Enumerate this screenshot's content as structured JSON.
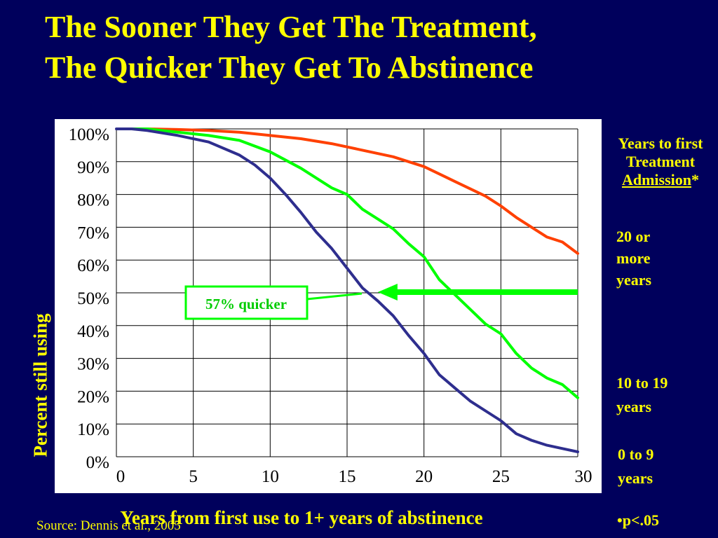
{
  "title": {
    "line1": "The Sooner They Get The Treatment,",
    "line2": "The Quicker They Get To Abstinence"
  },
  "source": "Source: Dennis et al., 2005",
  "legend": {
    "title_line1": "Years to first",
    "title_line2": "Treatment",
    "title_line3": "Admission",
    "title_star": "*",
    "items": [
      {
        "line1": "20 or",
        "line2": "more",
        "line3": "years"
      },
      {
        "line1": "10 to 19",
        "line2": "years"
      },
      {
        "line1": "0 to 9",
        "line2": "years"
      }
    ]
  },
  "footnote": "•p<.05",
  "colors": {
    "background": "#00005c",
    "text": "#ffff00",
    "plot_bg": "#ffffff",
    "series_20_plus": "#ff4000",
    "series_10_19": "#00ff00",
    "series_0_9": "#2e2e8e",
    "annotation": "#00cc00"
  },
  "chart_data": {
    "type": "line",
    "xlabel": "Years from first use to 1+ years of abstinence",
    "ylabel": "Percent still using",
    "xlim": [
      0,
      30
    ],
    "ylim": [
      0,
      100
    ],
    "xticks": [
      "0",
      "5",
      "10",
      "15",
      "20",
      "25",
      "30"
    ],
    "yticks": [
      "0%",
      "10%",
      "20%",
      "30%",
      "40%",
      "50%",
      "60%",
      "70%",
      "80%",
      "90%",
      "100%"
    ],
    "grid": true,
    "legend_position": "right, outside",
    "annotation": {
      "text": "57% quicker",
      "arrow_y": 50,
      "arrow_from_x": 30,
      "arrow_to_x": 17
    },
    "series": [
      {
        "name": "20 or more years",
        "x": [
          1,
          2,
          4,
          6,
          8,
          10,
          12,
          14,
          16,
          18,
          20,
          22,
          24,
          25,
          26,
          27,
          28,
          29,
          30
        ],
        "values": [
          100,
          100,
          99.8,
          99.5,
          99,
          98,
          97,
          95.5,
          93.5,
          91.5,
          88.5,
          84,
          79.5,
          76.5,
          73,
          70,
          67,
          65.5,
          62
        ]
      },
      {
        "name": "10 to 19 years",
        "x": [
          1,
          2,
          4,
          6,
          8,
          10,
          12,
          14,
          15,
          16,
          17,
          18,
          19,
          20,
          21,
          22,
          23,
          24,
          25,
          26,
          27,
          28,
          29,
          30
        ],
        "values": [
          100,
          100,
          99,
          98,
          96.5,
          93,
          88,
          82,
          80,
          75.5,
          72.5,
          69.5,
          65,
          61,
          54,
          49.5,
          45,
          40.5,
          37.5,
          31.5,
          27,
          24,
          22,
          18
        ]
      },
      {
        "name": "0 to 9 years",
        "x": [
          0,
          1,
          2,
          4,
          6,
          8,
          9,
          10,
          11,
          12,
          13,
          14,
          15,
          16,
          17,
          18,
          19,
          20,
          21,
          22,
          23,
          24,
          25,
          26,
          27,
          28,
          29,
          30
        ],
        "values": [
          100,
          100,
          99.5,
          98,
          96,
          92,
          89,
          85,
          80,
          74.5,
          68.5,
          63.5,
          57.5,
          51.5,
          47.5,
          43,
          37,
          31.5,
          25,
          21,
          17,
          14,
          11,
          7,
          5,
          3.5,
          2.5,
          1.5
        ]
      }
    ]
  }
}
